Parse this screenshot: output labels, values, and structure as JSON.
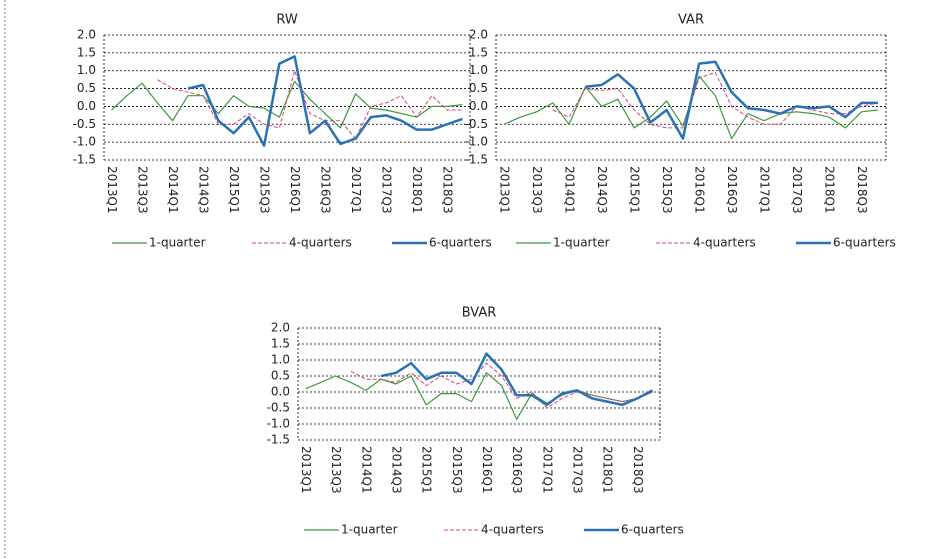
{
  "chart_data": [
    {
      "type": "line",
      "title": "RW",
      "categories": [
        "2013Q1",
        null,
        "2013Q3",
        null,
        "2014Q1",
        null,
        "2014Q3",
        null,
        "2015Q1",
        null,
        "2015Q3",
        null,
        "2016Q1",
        null,
        "2016Q3",
        null,
        "2017Q1",
        null,
        "2017Q3",
        null,
        "2018Q1",
        null,
        "2018Q3",
        null
      ],
      "series": [
        {
          "name": "1-quarter",
          "color": "#3c9a3c",
          "line_width": 1.2,
          "dashed": false,
          "values": [
            -0.1,
            0.3,
            0.65,
            0.1,
            -0.4,
            0.3,
            0.3,
            -0.2,
            0.3,
            0.0,
            -0.05,
            -0.3,
            0.7,
            0.2,
            -0.2,
            -0.6,
            0.35,
            -0.05,
            -0.1,
            -0.2,
            -0.3,
            0.0,
            0.0,
            0.05
          ]
        },
        {
          "name": "4-quarters",
          "color": "#d9457a",
          "line_width": 1,
          "dashed": true,
          "values": [
            null,
            null,
            null,
            0.75,
            0.5,
            0.4,
            0.3,
            -0.5,
            -0.5,
            -0.2,
            -0.5,
            -0.6,
            1.0,
            -0.2,
            -0.4,
            -0.4,
            -0.9,
            0.0,
            0.1,
            0.3,
            -0.3,
            0.3,
            -0.1,
            -0.1
          ]
        },
        {
          "name": "6-quarters",
          "color": "#2a72b5",
          "line_width": 2.5,
          "dashed": false,
          "values": [
            null,
            null,
            null,
            null,
            null,
            0.5,
            0.6,
            -0.4,
            -0.75,
            -0.3,
            -1.1,
            1.2,
            1.4,
            -0.75,
            -0.4,
            -1.05,
            -0.9,
            -0.3,
            -0.25,
            -0.4,
            -0.65,
            -0.65,
            -0.5,
            -0.35
          ]
        }
      ],
      "ylim": [
        -1.5,
        2.0
      ],
      "yticks": [
        {
          "value": 2,
          "label": "2.0"
        },
        1.5,
        {
          "value": 1,
          "label": "1.0"
        },
        0.5,
        {
          "value": 0,
          "label": "0.0"
        },
        -0.5,
        {
          "value": -1,
          "label": "-1.0"
        },
        -1.5
      ],
      "grid": true
    },
    {
      "type": "line",
      "title": "VAR",
      "categories": [
        "2013Q1",
        null,
        "2013Q3",
        null,
        "2014Q1",
        null,
        "2014Q3",
        null,
        "2015Q1",
        null,
        "2015Q3",
        null,
        "2016Q1",
        null,
        "2016Q3",
        null,
        "2017Q1",
        null,
        "2017Q3",
        null,
        "2018Q1",
        null,
        "2018Q3",
        null
      ],
      "series": [
        {
          "name": "1-quarter",
          "color": "#3c9a3c",
          "line_width": 1.2,
          "dashed": false,
          "values": [
            -0.5,
            -0.3,
            -0.15,
            0.1,
            -0.5,
            0.55,
            0.0,
            0.2,
            -0.6,
            -0.3,
            0.15,
            -0.55,
            0.85,
            0.3,
            -0.9,
            -0.2,
            -0.4,
            -0.2,
            -0.15,
            -0.2,
            -0.3,
            -0.6,
            -0.15,
            -0.1
          ]
        },
        {
          "name": "4-quarters",
          "color": "#d9457a",
          "line_width": 1,
          "dashed": true,
          "values": [
            null,
            null,
            null,
            -0.1,
            -0.3,
            0.5,
            0.45,
            0.5,
            -0.1,
            -0.5,
            -0.6,
            -0.6,
            0.8,
            0.95,
            0.0,
            -0.3,
            -0.5,
            -0.5,
            0.0,
            -0.1,
            -0.2,
            -0.2,
            0.0,
            0.1
          ]
        },
        {
          "name": "6-quarters",
          "color": "#2a72b5",
          "line_width": 2.5,
          "dashed": false,
          "values": [
            null,
            null,
            null,
            null,
            null,
            0.55,
            0.6,
            0.9,
            0.5,
            -0.45,
            -0.1,
            -0.9,
            1.2,
            1.25,
            0.4,
            -0.05,
            -0.1,
            -0.2,
            0.0,
            -0.05,
            0.0,
            -0.3,
            0.1,
            0.1
          ]
        }
      ],
      "ylim": [
        -1.5,
        2.0
      ],
      "yticks": [
        {
          "value": 2,
          "label": "2.0"
        },
        1.5,
        {
          "value": 1,
          "label": "1.0"
        },
        0.5,
        {
          "value": 0,
          "label": "0.0"
        },
        -0.5,
        {
          "value": -1,
          "label": "-1.0"
        },
        -1.5
      ],
      "grid": true
    },
    {
      "type": "line",
      "title": "BVAR",
      "categories": [
        "2013Q1",
        null,
        "2013Q3",
        null,
        "2014Q1",
        null,
        "2014Q3",
        null,
        "2015Q1",
        null,
        "2015Q3",
        null,
        "2016Q1",
        null,
        "2016Q3",
        null,
        "2017Q1",
        null,
        "2017Q3",
        null,
        "2018Q1",
        null,
        "2018Q3",
        null
      ],
      "series": [
        {
          "name": "1-quarter",
          "color": "#3c9a3c",
          "line_width": 1.2,
          "dashed": false,
          "values": [
            0.1,
            0.3,
            0.5,
            0.3,
            0.05,
            0.4,
            0.25,
            0.5,
            -0.4,
            -0.05,
            -0.05,
            -0.3,
            0.6,
            0.2,
            -0.85,
            -0.05,
            -0.35,
            -0.1,
            0.05,
            -0.1,
            -0.2,
            -0.3,
            -0.2,
            0.0
          ]
        },
        {
          "name": "4-quarters",
          "color": "#d9457a",
          "line_width": 1,
          "dashed": true,
          "values": [
            null,
            null,
            null,
            0.65,
            0.4,
            0.4,
            0.3,
            0.6,
            0.2,
            0.5,
            0.25,
            0.4,
            0.9,
            0.5,
            -0.2,
            0.0,
            -0.5,
            -0.2,
            0.0,
            -0.1,
            -0.2,
            -0.3,
            -0.2,
            0.0
          ]
        },
        {
          "name": "6-quarters",
          "color": "#2a72b5",
          "line_width": 2.5,
          "dashed": false,
          "values": [
            null,
            null,
            null,
            null,
            null,
            0.5,
            0.6,
            0.9,
            0.4,
            0.6,
            0.6,
            0.25,
            1.2,
            0.7,
            -0.1,
            -0.1,
            -0.4,
            -0.05,
            0.05,
            -0.2,
            -0.3,
            -0.4,
            -0.2,
            0.05
          ]
        }
      ],
      "ylim": [
        -1.5,
        2.0
      ],
      "yticks": [
        {
          "value": 2,
          "label": "2.0"
        },
        1.5,
        {
          "value": 1,
          "label": "1.0"
        },
        0.5,
        {
          "value": 0,
          "label": "0.0"
        },
        -0.5,
        {
          "value": -1,
          "label": "-1.0"
        },
        -1.5
      ],
      "grid": true
    }
  ]
}
